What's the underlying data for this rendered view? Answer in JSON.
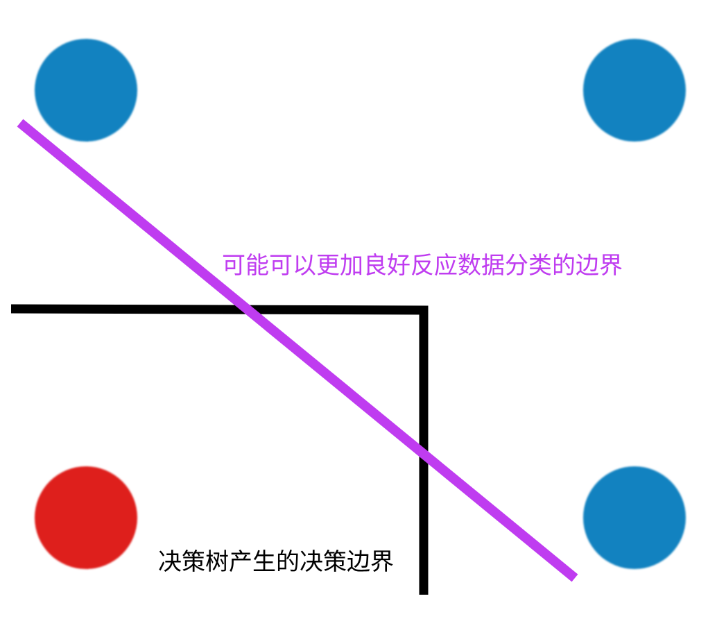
{
  "colors": {
    "blue_class": "#1282c0",
    "red_class": "#de1f1c",
    "tree_boundary": "#000000",
    "linear_boundary": "#bf3cf0",
    "background": "#ffffff"
  },
  "points": [
    {
      "name": "top-left",
      "class": "blue"
    },
    {
      "name": "top-right",
      "class": "blue"
    },
    {
      "name": "bottom-left",
      "class": "red"
    },
    {
      "name": "bottom-right",
      "class": "blue"
    }
  ],
  "labels": {
    "linear_boundary": "可能可以更加良好反应数据分类的边界",
    "tree_boundary": "决策树产生的决策边界"
  }
}
